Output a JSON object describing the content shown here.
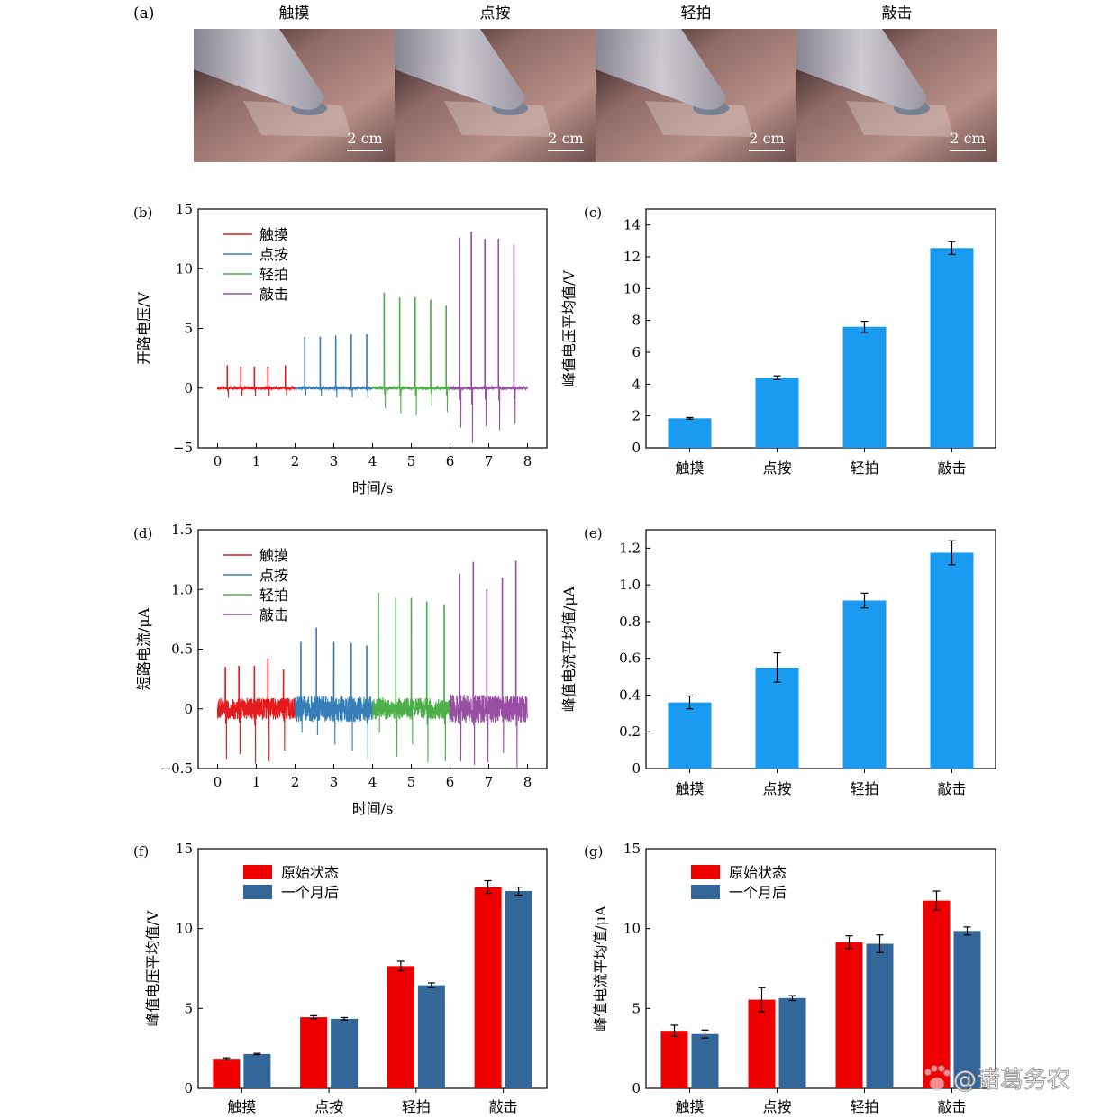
{
  "panel_letters": [
    "(a)",
    "(b)",
    "(c)",
    "(d)",
    "(e)",
    "(f)",
    "(g)"
  ],
  "photos": [
    {
      "caption": "触摸",
      "scale_text": "2 cm"
    },
    {
      "caption": "点按",
      "scale_text": "2 cm"
    },
    {
      "caption": "轻拍",
      "scale_text": "2 cm"
    },
    {
      "caption": "敲击",
      "scale_text": "2 cm"
    }
  ],
  "watermark": "@诸葛务农",
  "colors": {
    "touch": "#e41a1c",
    "press": "#377eb8",
    "pat": "#4daf4a",
    "knock": "#984ea3",
    "bar_blue": "#1a9bf0",
    "original": "#ee0000",
    "one_month": "#336699"
  },
  "chart_data": [
    {
      "panel": "(b)",
      "type": "line",
      "xlabel": "时间/s",
      "ylabel": "开路电压/V",
      "xlim": [
        -0.5,
        8.5
      ],
      "ylim": [
        -5,
        15
      ],
      "xticks": [
        "0",
        "1",
        "2",
        "3",
        "4",
        "5",
        "6",
        "7",
        "8"
      ],
      "yticks": [
        "−5",
        "0",
        "5",
        "10",
        "15"
      ],
      "legend": "top-left",
      "series": [
        {
          "name": "触摸",
          "x_range": [
            0,
            2
          ],
          "peak_times": [
            0.25,
            0.6,
            0.95,
            1.3,
            1.75
          ],
          "peaks": [
            1.9,
            1.8,
            1.8,
            1.8,
            1.9
          ],
          "troughs": [
            -0.8,
            -0.7,
            -0.7,
            -0.7,
            -0.6
          ]
        },
        {
          "name": "点按",
          "x_range": [
            2,
            4
          ],
          "peak_times": [
            2.25,
            2.65,
            3.05,
            3.45,
            3.85
          ],
          "peaks": [
            4.3,
            4.3,
            4.4,
            4.5,
            4.5
          ],
          "troughs": [
            -0.6,
            -0.7,
            -0.8,
            -0.8,
            -0.8
          ]
        },
        {
          "name": "轻拍",
          "x_range": [
            4,
            6
          ],
          "peak_times": [
            4.3,
            4.7,
            5.1,
            5.5,
            5.9
          ],
          "peaks": [
            8.0,
            7.6,
            7.6,
            7.4,
            6.9
          ],
          "troughs": [
            -1.7,
            -2.1,
            -2.3,
            -1.5,
            -2.0
          ]
        },
        {
          "name": "敲击",
          "x_range": [
            6,
            8
          ],
          "peak_times": [
            6.25,
            6.55,
            6.9,
            7.25,
            7.65
          ],
          "peaks": [
            12.6,
            13.1,
            12.5,
            12.5,
            12.0
          ],
          "troughs": [
            -3.3,
            -4.6,
            -3.2,
            -3.5,
            -3.0
          ]
        }
      ]
    },
    {
      "panel": "(c)",
      "type": "bar",
      "ylabel": "峰值电压平均值/V",
      "categories": [
        "触摸",
        "点按",
        "轻拍",
        "敲击"
      ],
      "values": [
        1.85,
        4.4,
        7.6,
        12.55
      ],
      "errors": [
        0.05,
        0.12,
        0.35,
        0.4
      ],
      "ylim": [
        0,
        15
      ],
      "yticks": [
        "0",
        "2",
        "4",
        "6",
        "8",
        "10",
        "12",
        "14"
      ]
    },
    {
      "panel": "(d)",
      "type": "line",
      "xlabel": "时间/s",
      "ylabel": "短路电流/μA",
      "xlim": [
        -0.5,
        8.5
      ],
      "ylim": [
        -0.5,
        1.5
      ],
      "xticks": [
        "0",
        "1",
        "2",
        "3",
        "4",
        "5",
        "6",
        "7",
        "8"
      ],
      "yticks": [
        "−0.5",
        "0",
        "0.5",
        "1.0",
        "1.5"
      ],
      "legend": "top-left",
      "series": [
        {
          "name": "触摸",
          "x_range": [
            0,
            2
          ],
          "noise": 0.09,
          "peak_times": [
            0.2,
            0.55,
            0.95,
            1.3,
            1.7
          ],
          "peaks": [
            0.35,
            0.36,
            0.36,
            0.42,
            0.33
          ],
          "troughs": [
            -0.42,
            -0.38,
            -0.46,
            -0.44,
            -0.35
          ]
        },
        {
          "name": "点按",
          "x_range": [
            2,
            4
          ],
          "noise": 0.11,
          "peak_times": [
            2.15,
            2.55,
            3.0,
            3.45,
            3.85
          ],
          "peaks": [
            0.56,
            0.68,
            0.56,
            0.55,
            0.53
          ],
          "troughs": [
            -0.2,
            -0.22,
            -0.3,
            -0.35,
            -0.42
          ]
        },
        {
          "name": "轻拍",
          "x_range": [
            4,
            6
          ],
          "noise": 0.09,
          "peak_times": [
            4.15,
            4.6,
            5.0,
            5.4,
            5.85
          ],
          "peaks": [
            0.97,
            0.93,
            0.93,
            0.9,
            0.87
          ],
          "troughs": [
            -0.2,
            -0.4,
            -0.3,
            -0.45,
            -0.44
          ]
        },
        {
          "name": "敲击",
          "x_range": [
            6,
            8
          ],
          "noise": 0.12,
          "peak_times": [
            6.25,
            6.6,
            6.95,
            7.35,
            7.7
          ],
          "peaks": [
            1.13,
            1.23,
            1.0,
            1.1,
            1.24
          ],
          "troughs": [
            -0.44,
            -0.47,
            -0.45,
            -0.37,
            -0.49
          ]
        }
      ]
    },
    {
      "panel": "(e)",
      "type": "bar",
      "ylabel": "峰值电流平均值/μA",
      "categories": [
        "触摸",
        "点按",
        "轻拍",
        "敲击"
      ],
      "values": [
        0.36,
        0.55,
        0.915,
        1.175
      ],
      "errors": [
        0.035,
        0.08,
        0.04,
        0.065
      ],
      "ylim": [
        0,
        1.3
      ],
      "yticks": [
        "0",
        "0.2",
        "0.4",
        "0.6",
        "0.8",
        "1.0",
        "1.2"
      ]
    },
    {
      "panel": "(f)",
      "type": "bar",
      "ylabel": "峰值电压平均值/V",
      "categories": [
        "触摸",
        "点按",
        "轻拍",
        "敲击"
      ],
      "series": [
        {
          "name": "原始状态",
          "values": [
            1.85,
            4.45,
            7.65,
            12.6
          ],
          "errors": [
            0.06,
            0.1,
            0.3,
            0.4
          ]
        },
        {
          "name": "一个月后",
          "values": [
            2.15,
            4.35,
            6.45,
            12.35
          ],
          "errors": [
            0.04,
            0.08,
            0.15,
            0.25
          ]
        }
      ],
      "ylim": [
        0,
        15
      ],
      "yticks": [
        "0",
        "5",
        "10",
        "15"
      ],
      "legend": "top-left"
    },
    {
      "panel": "(g)",
      "type": "bar",
      "ylabel": "峰值电流平均值/μA",
      "categories": [
        "触摸",
        "点按",
        "轻拍",
        "敲击"
      ],
      "series": [
        {
          "name": "原始状态",
          "values": [
            3.6,
            5.55,
            9.15,
            11.75
          ],
          "errors": [
            0.35,
            0.75,
            0.4,
            0.6
          ]
        },
        {
          "name": "一个月后",
          "values": [
            3.4,
            5.65,
            9.05,
            9.85
          ],
          "errors": [
            0.25,
            0.15,
            0.55,
            0.25
          ]
        }
      ],
      "ylim": [
        0,
        15
      ],
      "yticks": [
        "0",
        "5",
        "10",
        "15"
      ],
      "legend": "top-left"
    }
  ]
}
